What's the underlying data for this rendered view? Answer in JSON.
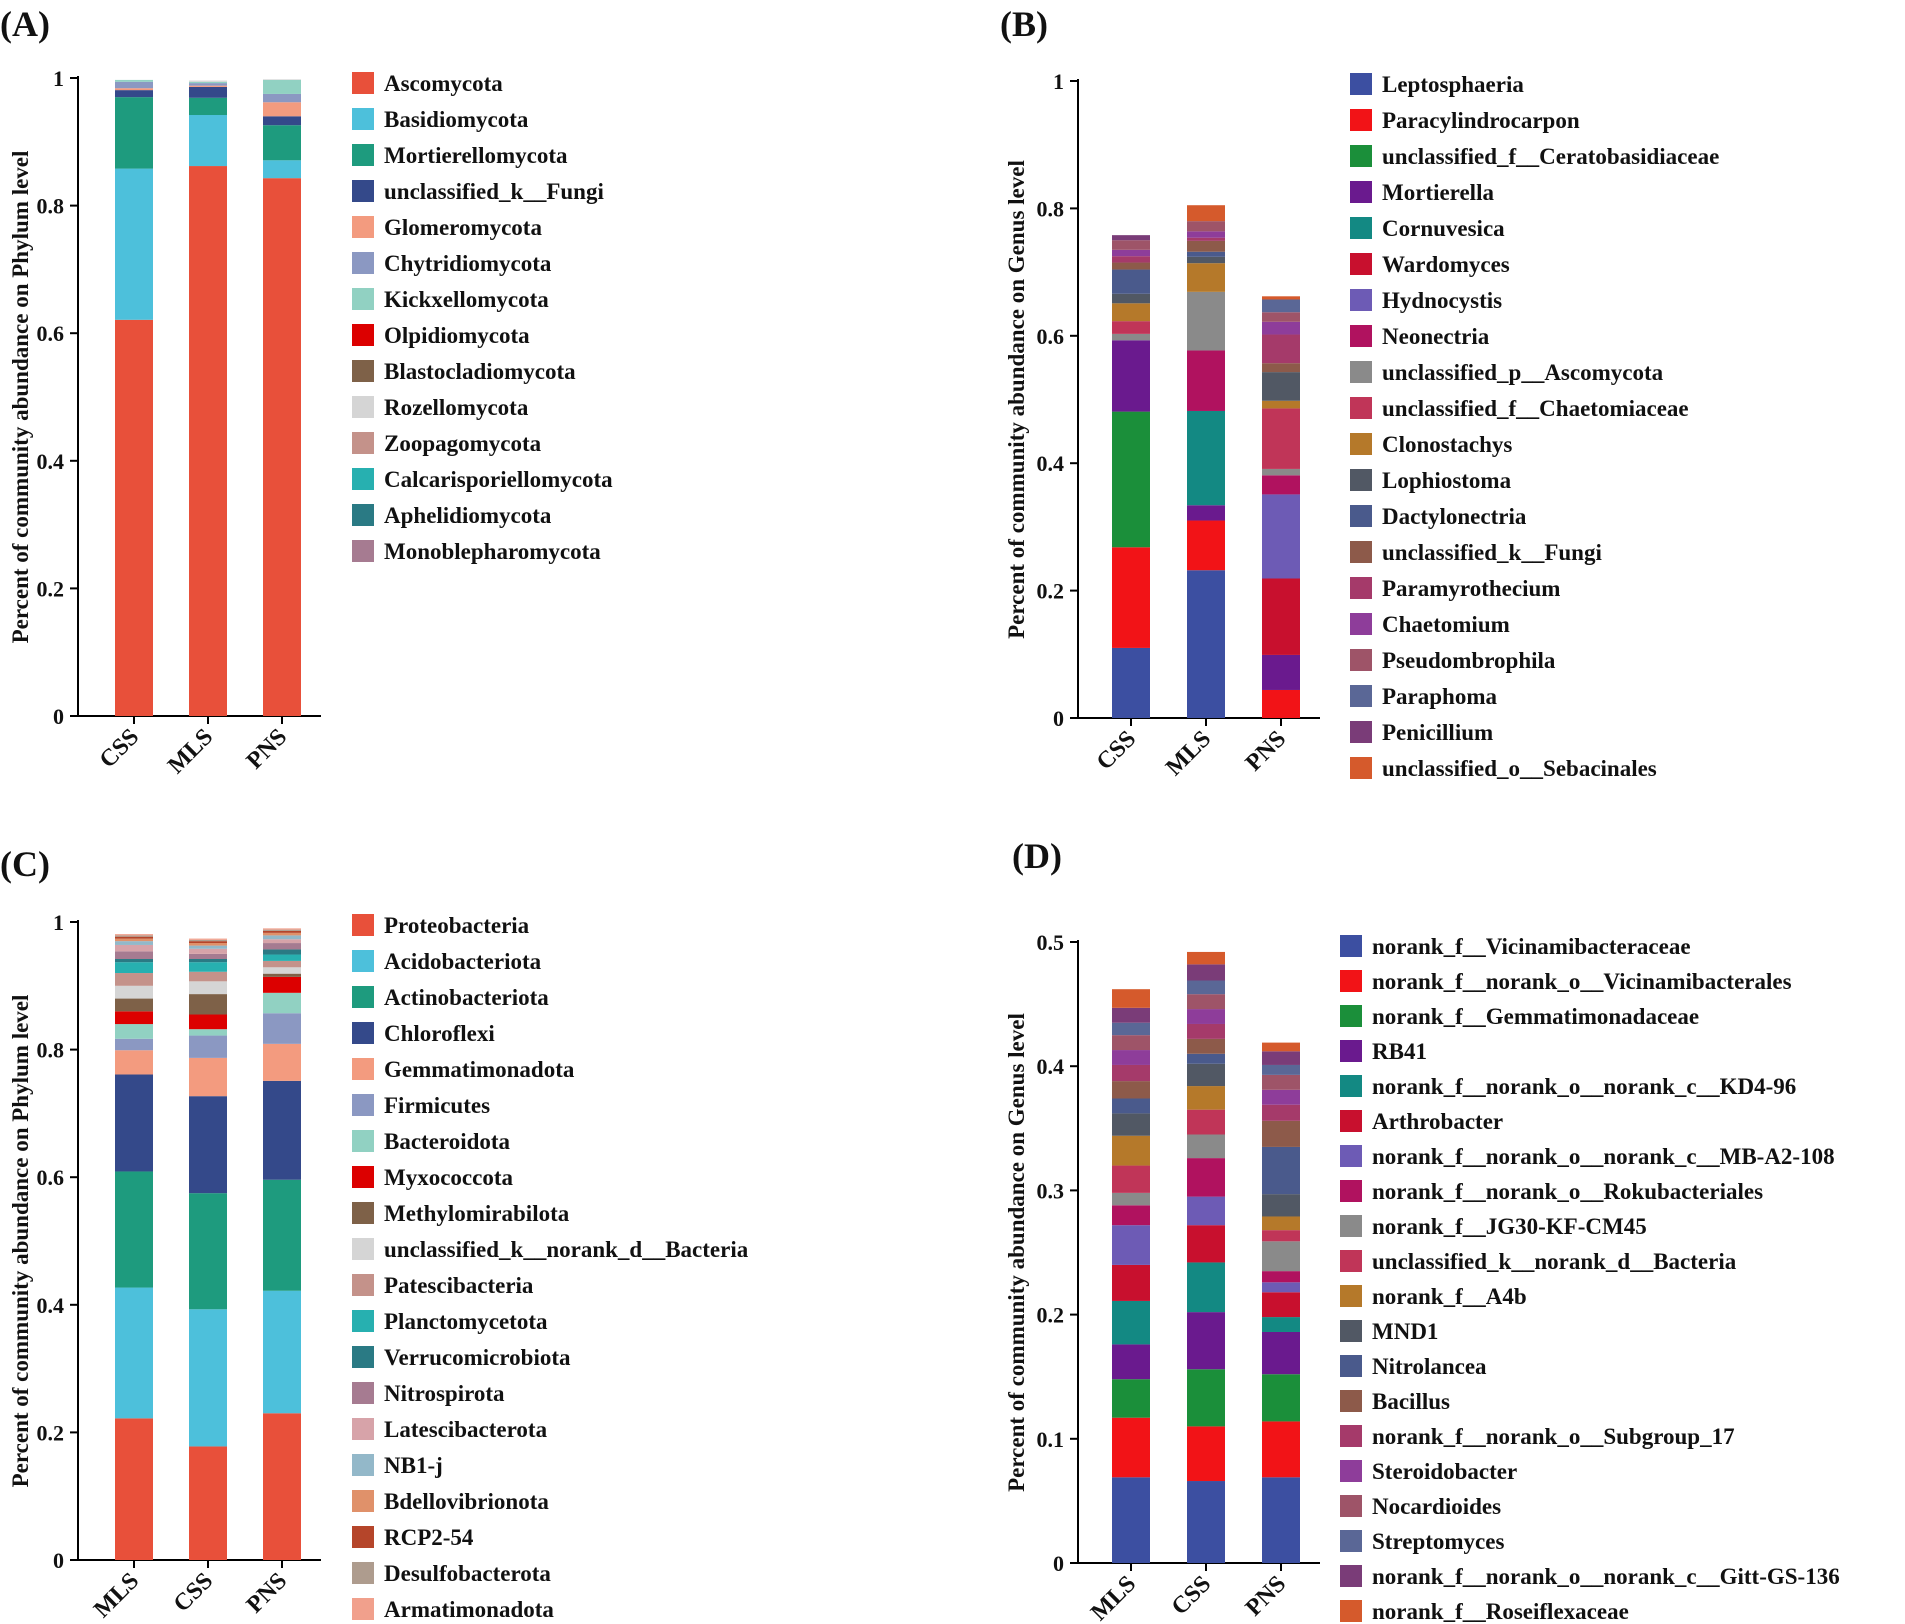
{
  "chart_data": [
    {
      "panel": "(A)",
      "type": "bar",
      "stacked": true,
      "ylabel": "Percent of community abundance on Phylum level",
      "ylim": [
        0,
        1
      ],
      "yticks": [
        0,
        0.2,
        0.4,
        0.6,
        0.8,
        1
      ],
      "categories": [
        "CSS",
        "MLS",
        "PNS"
      ],
      "series": [
        {
          "name": "Ascomycota",
          "color": "#E8503A",
          "values": [
            0.621,
            0.862,
            0.843
          ]
        },
        {
          "name": "Basidiomycota",
          "color": "#4DC0DB",
          "values": [
            0.237,
            0.08,
            0.028
          ]
        },
        {
          "name": "Mortierellomycota",
          "color": "#1E9B7E",
          "values": [
            0.112,
            0.027,
            0.055
          ]
        },
        {
          "name": "unclassified_k__Fungi",
          "color": "#34498A",
          "values": [
            0.011,
            0.017,
            0.014
          ]
        },
        {
          "name": "Glomeromycota",
          "color": "#F39B7F",
          "values": [
            0.003,
            0.002,
            0.022
          ]
        },
        {
          "name": "Chytridiomycota",
          "color": "#8B98C2",
          "values": [
            0.01,
            0.004,
            0.013
          ]
        },
        {
          "name": "Kickxellomycota",
          "color": "#91D1C2",
          "values": [
            0.003,
            0.002,
            0.022
          ]
        },
        {
          "name": "Olpidiomycota",
          "color": "#DC0000",
          "values": [
            0.0,
            0.0,
            0.0
          ]
        },
        {
          "name": "Blastocladiomycota",
          "color": "#7E6148",
          "values": [
            0.0,
            0.0,
            0.0
          ]
        },
        {
          "name": "Rozellomycota",
          "color": "#D5D5D5",
          "values": [
            0.0,
            0.002,
            0.001
          ]
        },
        {
          "name": "Zoopagomycota",
          "color": "#C4928A",
          "values": [
            0.0,
            0.0,
            0.0
          ]
        },
        {
          "name": "Calcarisporiellomycota",
          "color": "#27B0B0",
          "values": [
            0.0,
            0.0,
            0.0
          ]
        },
        {
          "name": "Aphelidiomycota",
          "color": "#2A7A84",
          "values": [
            0.0,
            0.0,
            0.0
          ]
        },
        {
          "name": "Monoblepharomycota",
          "color": "#A67B91",
          "values": [
            0.0,
            0.0,
            0.0
          ]
        }
      ]
    },
    {
      "panel": "(B)",
      "type": "bar",
      "stacked": true,
      "ylabel": "Percent of community abundance on Genus level",
      "ylim": [
        0,
        1
      ],
      "yticks": [
        0,
        0.2,
        0.4,
        0.6,
        0.8,
        1
      ],
      "categories": [
        "CSS",
        "MLS",
        "PNS"
      ],
      "series": [
        {
          "name": "Leptosphaeria",
          "color": "#3C4FA1",
          "values": [
            0.11,
            0.232,
            0.0
          ]
        },
        {
          "name": "Paracylindrocarpon",
          "color": "#F21317",
          "values": [
            0.158,
            0.078,
            0.044
          ]
        },
        {
          "name": "unclassified_f__Ceratobasidiaceae",
          "color": "#1B8F3A",
          "values": [
            0.213,
            0.0,
            0.0
          ]
        },
        {
          "name": "Mortierella",
          "color": "#6A1A8E",
          "values": [
            0.112,
            0.024,
            0.055
          ]
        },
        {
          "name": "Cornuvesica",
          "color": "#138983",
          "values": [
            0.0,
            0.148,
            0.0
          ]
        },
        {
          "name": "Wardomyces",
          "color": "#C8102E",
          "values": [
            0.0,
            0.0,
            0.12
          ]
        },
        {
          "name": "Hydnocystis",
          "color": "#6D5BB5",
          "values": [
            0.0,
            0.0,
            0.132
          ]
        },
        {
          "name": "Neonectria",
          "color": "#B0125F",
          "values": [
            0.0,
            0.095,
            0.03
          ]
        },
        {
          "name": "unclassified_p__Ascomycota",
          "color": "#8A8A8A",
          "values": [
            0.01,
            0.092,
            0.01
          ]
        },
        {
          "name": "unclassified_f__Chaetomiaceae",
          "color": "#C03558",
          "values": [
            0.02,
            0.0,
            0.095
          ]
        },
        {
          "name": "Clonostachys",
          "color": "#B5792A",
          "values": [
            0.028,
            0.045,
            0.012
          ]
        },
        {
          "name": "Lophiostoma",
          "color": "#515864",
          "values": [
            0.015,
            0.01,
            0.045
          ]
        },
        {
          "name": "Dactylonectria",
          "color": "#4A5A8C",
          "values": [
            0.038,
            0.008,
            0.0
          ]
        },
        {
          "name": "unclassified_k__Fungi",
          "color": "#8D5A4A",
          "values": [
            0.011,
            0.017,
            0.014
          ]
        },
        {
          "name": "Paramyrothecium",
          "color": "#A53A6A",
          "values": [
            0.01,
            0.005,
            0.045
          ]
        },
        {
          "name": "Chaetomium",
          "color": "#8E3D9A",
          "values": [
            0.01,
            0.01,
            0.02
          ]
        },
        {
          "name": "Pseudombrophila",
          "color": "#9E5468",
          "values": [
            0.015,
            0.016,
            0.015
          ]
        },
        {
          "name": "Paraphoma",
          "color": "#5A6796",
          "values": [
            0.0,
            0.0,
            0.02
          ]
        },
        {
          "name": "Penicillium",
          "color": "#7A3C78",
          "values": [
            0.008,
            0.0,
            0.0
          ]
        },
        {
          "name": "unclassified_o__Sebacinales",
          "color": "#D55A2C",
          "values": [
            0.0,
            0.025,
            0.005
          ]
        }
      ]
    },
    {
      "panel": "(C)",
      "type": "bar",
      "stacked": true,
      "ylabel": "Percent of community abundance on Phylum level",
      "ylim": [
        0,
        1
      ],
      "yticks": [
        0,
        0.2,
        0.4,
        0.6,
        0.8,
        1
      ],
      "categories": [
        "MLS",
        "CSS",
        "PNS"
      ],
      "series": [
        {
          "name": "Proteobacteria",
          "color": "#E8503A",
          "values": [
            0.222,
            0.178,
            0.23
          ]
        },
        {
          "name": "Acidobacteriota",
          "color": "#4DC0DB",
          "values": [
            0.205,
            0.215,
            0.192
          ]
        },
        {
          "name": "Actinobacteriota",
          "color": "#1E9B7E",
          "values": [
            0.182,
            0.182,
            0.174
          ]
        },
        {
          "name": "Chloroflexi",
          "color": "#34498A",
          "values": [
            0.152,
            0.152,
            0.155
          ]
        },
        {
          "name": "Gemmatimonadota",
          "color": "#F39B7F",
          "values": [
            0.038,
            0.06,
            0.058
          ]
        },
        {
          "name": "Firmicutes",
          "color": "#8B98C2",
          "values": [
            0.018,
            0.035,
            0.048
          ]
        },
        {
          "name": "Bacteroidota",
          "color": "#91D1C2",
          "values": [
            0.023,
            0.01,
            0.032
          ]
        },
        {
          "name": "Myxococcota",
          "color": "#DC0000",
          "values": [
            0.02,
            0.023,
            0.025
          ]
        },
        {
          "name": "Methylomirabilota",
          "color": "#7E6148",
          "values": [
            0.02,
            0.032,
            0.005
          ]
        },
        {
          "name": "unclassified_k__norank_d__Bacteria",
          "color": "#D5D5D5",
          "values": [
            0.02,
            0.02,
            0.01
          ]
        },
        {
          "name": "Patescibacteria",
          "color": "#C4928A",
          "values": [
            0.02,
            0.015,
            0.01
          ]
        },
        {
          "name": "Planctomycetota",
          "color": "#27B0B0",
          "values": [
            0.017,
            0.015,
            0.01
          ]
        },
        {
          "name": "Verrucomicrobiota",
          "color": "#2A7A84",
          "values": [
            0.005,
            0.005,
            0.008
          ]
        },
        {
          "name": "Nitrospirota",
          "color": "#A67B91",
          "values": [
            0.012,
            0.008,
            0.01
          ]
        },
        {
          "name": "Latescibacterota",
          "color": "#D7A3A9",
          "values": [
            0.01,
            0.008,
            0.006
          ]
        },
        {
          "name": "NB1-j",
          "color": "#93B8C9",
          "values": [
            0.006,
            0.005,
            0.006
          ]
        },
        {
          "name": "Bdellovibrionota",
          "color": "#E0916A",
          "values": [
            0.004,
            0.004,
            0.004
          ]
        },
        {
          "name": "RCP2-54",
          "color": "#B5452A",
          "values": [
            0.003,
            0.003,
            0.003
          ]
        },
        {
          "name": "Desulfobacterota",
          "color": "#AE9C8E",
          "values": [
            0.002,
            0.002,
            0.002
          ]
        },
        {
          "name": "Armatimonadota",
          "color": "#F1A08C",
          "values": [
            0.002,
            0.002,
            0.002
          ]
        }
      ]
    },
    {
      "panel": "(D)",
      "type": "bar",
      "stacked": true,
      "ylabel": "Percent of community abundance on Genus level",
      "ylim": [
        0,
        0.5
      ],
      "yticks": [
        0,
        0.1,
        0.2,
        0.3,
        0.4,
        0.5
      ],
      "categories": [
        "MLS",
        "CSS",
        "PNS"
      ],
      "series": [
        {
          "name": "norank_f__Vicinamibacteraceae",
          "color": "#3C4FA1",
          "values": [
            0.069,
            0.066,
            0.069
          ]
        },
        {
          "name": "norank_f__norank_o__Vicinamibacterales",
          "color": "#F21317",
          "values": [
            0.048,
            0.044,
            0.045
          ]
        },
        {
          "name": "norank_f__Gemmatimonadaceae",
          "color": "#1B8F3A",
          "values": [
            0.031,
            0.046,
            0.038
          ]
        },
        {
          "name": "RB41",
          "color": "#6A1A8E",
          "values": [
            0.028,
            0.046,
            0.034
          ]
        },
        {
          "name": "norank_f__norank_o__norank_c__KD4-96",
          "color": "#138983",
          "values": [
            0.035,
            0.04,
            0.012
          ]
        },
        {
          "name": "Arthrobacter",
          "color": "#C8102E",
          "values": [
            0.029,
            0.03,
            0.02
          ]
        },
        {
          "name": "norank_f__norank_o__norank_c__MB-A2-108",
          "color": "#6D5BB5",
          "values": [
            0.032,
            0.023,
            0.008
          ]
        },
        {
          "name": "norank_f__norank_o__Rokubacteriales",
          "color": "#B0125F",
          "values": [
            0.016,
            0.031,
            0.009
          ]
        },
        {
          "name": "norank_f__JG30-KF-CM45",
          "color": "#8A8A8A",
          "values": [
            0.01,
            0.019,
            0.024
          ]
        },
        {
          "name": "unclassified_k__norank_d__Bacteria",
          "color": "#C03558",
          "values": [
            0.022,
            0.02,
            0.009
          ]
        },
        {
          "name": "norank_f__A4b",
          "color": "#B5792A",
          "values": [
            0.024,
            0.019,
            0.011
          ]
        },
        {
          "name": "MND1",
          "color": "#515864",
          "values": [
            0.018,
            0.018,
            0.018
          ]
        },
        {
          "name": "Nitrolancea",
          "color": "#4A5A8C",
          "values": [
            0.012,
            0.008,
            0.038
          ]
        },
        {
          "name": "Bacillus",
          "color": "#8D5A4A",
          "values": [
            0.014,
            0.012,
            0.021
          ]
        },
        {
          "name": "norank_f__norank_o__Subgroup_17",
          "color": "#A53A6A",
          "values": [
            0.013,
            0.012,
            0.013
          ]
        },
        {
          "name": "Steroidobacter",
          "color": "#8E3D9A",
          "values": [
            0.012,
            0.012,
            0.012
          ]
        },
        {
          "name": "Nocardioides",
          "color": "#9E5468",
          "values": [
            0.012,
            0.012,
            0.012
          ]
        },
        {
          "name": "Streptomyces",
          "color": "#5A6796",
          "values": [
            0.01,
            0.011,
            0.008
          ]
        },
        {
          "name": "norank_f__norank_o__norank_c__Gitt-GS-136",
          "color": "#7A3C78",
          "values": [
            0.012,
            0.013,
            0.011
          ]
        },
        {
          "name": "norank_f__Roseiflexaceae",
          "color": "#D55A2C",
          "values": [
            0.015,
            0.01,
            0.007
          ]
        }
      ]
    }
  ]
}
